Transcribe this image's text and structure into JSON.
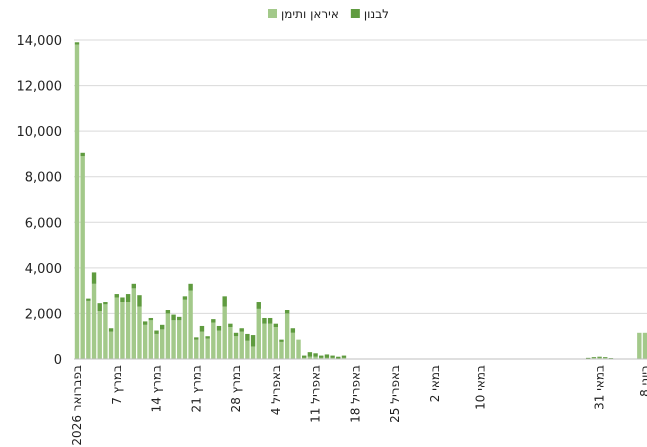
{
  "chart_data": {
    "type": "bar",
    "stacked": true,
    "categories": [
      "28 בפברואר 2026",
      null,
      null,
      null,
      null,
      null,
      null,
      "7 במרץ",
      null,
      null,
      null,
      null,
      null,
      null,
      "14 במרץ",
      null,
      null,
      null,
      null,
      null,
      null,
      "21 במרץ",
      null,
      null,
      null,
      null,
      null,
      null,
      "28 במרץ",
      null,
      null,
      null,
      null,
      null,
      null,
      "4 באפריל",
      null,
      null,
      null,
      null,
      null,
      null,
      "11 באפריל",
      null,
      null,
      null,
      null,
      null,
      null,
      "18 באפריל",
      null,
      null,
      null,
      null,
      null,
      null,
      "25 באפריל",
      null,
      null,
      null,
      null,
      null,
      null,
      "2 במאי",
      null,
      null,
      null,
      null,
      null,
      null,
      null,
      "10 במאי",
      null,
      null,
      null,
      null,
      null,
      null,
      null,
      null,
      null,
      null,
      null,
      null,
      null,
      null,
      null,
      null,
      null,
      null,
      null,
      null,
      "31 במאי",
      null,
      null,
      null,
      null,
      null,
      null,
      null,
      "8 ביוני"
    ],
    "series": [
      {
        "name": "איראן ותימן",
        "color": "#a3c98a",
        "values": [
          13800,
          8900,
          2550,
          3300,
          2100,
          2400,
          1200,
          2700,
          2500,
          2500,
          3100,
          2300,
          1500,
          1700,
          1100,
          1300,
          2000,
          1700,
          1700,
          2600,
          3000,
          850,
          1200,
          900,
          1600,
          1250,
          2300,
          1400,
          1000,
          1200,
          800,
          550,
          2200,
          1550,
          1550,
          1400,
          750,
          2000,
          1150,
          850,
          50,
          100,
          100,
          50,
          50,
          50,
          0,
          50,
          0,
          0,
          0,
          0,
          0,
          0,
          0,
          0,
          0,
          0,
          0,
          0,
          0,
          0,
          0,
          0,
          0,
          0,
          0,
          0,
          0,
          0,
          0,
          0,
          0,
          0,
          0,
          0,
          0,
          0,
          0,
          0,
          0,
          0,
          0,
          0,
          0,
          0,
          0,
          0,
          0,
          0,
          20,
          40,
          50,
          40,
          20,
          0,
          0,
          0,
          0,
          1150,
          1150
        ]
      },
      {
        "name": "לבנון",
        "color": "#5f9b3f",
        "values": [
          100,
          150,
          100,
          500,
          350,
          100,
          150,
          150,
          200,
          350,
          200,
          500,
          150,
          100,
          150,
          200,
          150,
          250,
          150,
          150,
          300,
          100,
          250,
          100,
          150,
          200,
          450,
          150,
          150,
          150,
          300,
          500,
          300,
          250,
          250,
          150,
          100,
          150,
          200,
          0,
          100,
          200,
          150,
          100,
          150,
          100,
          100,
          100,
          20,
          20,
          20,
          20,
          20,
          20,
          20,
          20,
          20,
          20,
          20,
          20,
          20,
          20,
          20,
          20,
          20,
          20,
          20,
          20,
          20,
          20,
          20,
          20,
          20,
          20,
          20,
          20,
          20,
          20,
          20,
          20,
          20,
          20,
          20,
          20,
          20,
          20,
          20,
          20,
          20,
          20,
          30,
          40,
          50,
          40,
          20,
          20,
          0,
          0,
          0,
          0,
          0
        ]
      }
    ],
    "ylim": [
      0,
      14000
    ],
    "yticks": [
      0,
      {
        "value": 2000,
        "label": "2,000"
      },
      {
        "value": 4000,
        "label": "4,000"
      },
      {
        "value": 6000,
        "label": "6,000"
      },
      {
        "value": 8000,
        "label": "8,000"
      },
      {
        "value": 10000,
        "label": "10,000"
      },
      {
        "value": 12000,
        "label": "12,000"
      },
      {
        "value": 14000,
        "label": "14,000"
      }
    ],
    "grid": true,
    "legend": "top"
  }
}
